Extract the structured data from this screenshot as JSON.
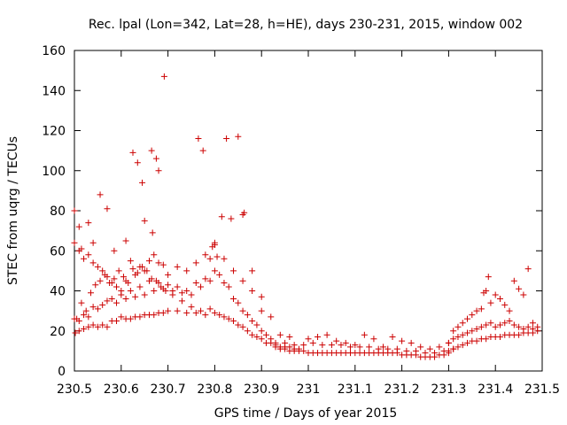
{
  "chart_data": {
    "type": "scatter",
    "title": "Rec. lpal (Lon=342, Lat=28, h=HE), days 230-231, 2015, window 002",
    "xlabel": "GPS time / Days of year 2015",
    "ylabel": "STEC from uqrg / TECUs",
    "xlim": [
      230.5,
      231.5
    ],
    "ylim": [
      0,
      160
    ],
    "xticks": [
      "230.5",
      "230.6",
      "230.7",
      "230.8",
      "230.9",
      "231",
      "231.1",
      "231.2",
      "231.3",
      "231.4",
      "231.5"
    ],
    "yticks": [
      "0",
      "20",
      "40",
      "60",
      "80",
      "100",
      "120",
      "140",
      "160"
    ],
    "grid": false,
    "legend": "none",
    "marker": "plus",
    "color": "#cc0000",
    "series": [
      {
        "x": [
          230.5,
          230.502,
          230.505,
          230.51,
          230.515,
          230.52,
          230.525,
          230.53,
          230.535,
          230.54,
          230.545,
          230.55,
          230.555,
          230.56,
          230.565,
          230.57,
          230.575,
          230.58,
          230.585,
          230.59,
          230.595,
          230.6,
          230.605,
          230.61,
          230.615,
          230.62,
          230.625,
          230.63,
          230.635,
          230.64,
          230.645,
          230.65,
          230.655,
          230.66,
          230.665,
          230.67,
          230.675,
          230.68,
          230.685,
          230.69,
          230.695,
          230.7,
          230.71,
          230.72,
          230.73,
          230.74,
          230.75,
          230.76,
          230.77,
          230.78,
          230.79,
          230.8,
          230.81,
          230.82,
          230.83,
          230.84,
          230.85,
          230.86,
          230.87,
          230.88,
          230.89,
          230.9,
          230.91,
          230.92,
          230.93,
          230.94,
          230.95,
          230.96,
          230.97,
          230.98
        ],
        "y": [
          64,
          19,
          26,
          20,
          34,
          21,
          30,
          22,
          39,
          23,
          43,
          22,
          45,
          23,
          48,
          22,
          44,
          25,
          46,
          25,
          50,
          27,
          47,
          26,
          44,
          26,
          51,
          27,
          49,
          27,
          52,
          28,
          50,
          28,
          46,
          28,
          45,
          29,
          42,
          29,
          40,
          30,
          38,
          30,
          35,
          29,
          32,
          29,
          30,
          28,
          31,
          29,
          28,
          27,
          26,
          25,
          23,
          22,
          20,
          18,
          17,
          16,
          14,
          14,
          13,
          12,
          12,
          12,
          11,
          11
        ]
      },
      {
        "x": [
          230.5,
          230.51,
          230.52,
          230.53,
          230.54,
          230.55,
          230.56,
          230.57,
          230.58,
          230.59,
          230.6,
          230.61,
          230.62,
          230.63,
          230.64,
          230.65,
          230.66,
          230.67,
          230.68,
          230.69,
          230.7,
          230.71,
          230.72,
          230.73,
          230.74,
          230.75,
          230.76,
          230.77,
          230.78,
          230.79,
          230.8,
          230.81,
          230.82,
          230.83,
          230.84,
          230.85,
          230.86,
          230.87,
          230.88,
          230.89,
          230.9,
          230.91,
          230.92,
          230.93
        ],
        "y": [
          26,
          25,
          28,
          27,
          32,
          31,
          33,
          35,
          36,
          34,
          38,
          36,
          40,
          37,
          42,
          38,
          45,
          40,
          44,
          41,
          43,
          40,
          42,
          39,
          40,
          38,
          44,
          42,
          46,
          45,
          50,
          48,
          44,
          42,
          36,
          34,
          30,
          28,
          25,
          23,
          20,
          18,
          16,
          14
        ]
      },
      {
        "x": [
          230.51,
          230.52,
          230.53,
          230.54,
          230.55,
          230.56,
          230.57,
          230.58,
          230.59,
          230.6,
          230.61,
          230.62,
          230.63,
          230.64,
          230.65,
          230.66,
          230.67,
          230.68,
          230.69,
          230.7,
          230.72,
          230.74,
          230.76,
          230.78,
          230.8,
          230.82,
          230.84,
          230.86,
          230.88,
          230.9
        ],
        "y": [
          60,
          56,
          58,
          54,
          52,
          50,
          47,
          44,
          42,
          40,
          45,
          55,
          48,
          52,
          50,
          55,
          58,
          54,
          53,
          48,
          52,
          50,
          54,
          58,
          63,
          56,
          50,
          45,
          40,
          30
        ]
      },
      {
        "x": [
          230.5,
          230.51,
          230.515,
          230.53,
          230.54,
          230.555,
          230.57,
          230.585,
          230.61,
          230.625,
          230.635,
          230.645,
          230.65,
          230.665,
          230.667,
          230.675,
          230.68,
          230.692,
          230.765,
          230.775,
          230.79,
          230.795,
          230.8,
          230.805,
          230.815,
          230.825,
          230.835,
          230.85,
          230.86,
          230.863,
          230.88,
          230.9
        ],
        "y": [
          80,
          72,
          61,
          74,
          64,
          88,
          81,
          60,
          65,
          109,
          104,
          94,
          75,
          110,
          69,
          106,
          100,
          147,
          116,
          110,
          56,
          62,
          64,
          57,
          77,
          116,
          76,
          117,
          78,
          79,
          50,
          37
        ]
      },
      {
        "x": [
          230.93,
          230.94,
          230.95,
          230.96,
          230.97,
          230.98,
          230.99,
          231.0,
          231.01,
          231.02,
          231.03,
          231.04,
          231.05,
          231.06,
          231.07,
          231.08,
          231.09,
          231.1,
          231.11,
          231.12,
          231.13,
          231.14,
          231.15,
          231.16,
          231.17,
          231.18,
          231.19,
          231.2,
          231.21,
          231.22,
          231.23,
          231.24,
          231.25,
          231.26,
          231.27,
          231.28,
          231.29,
          231.3
        ],
        "y": [
          12,
          11,
          11,
          10,
          10,
          10,
          10,
          9,
          9,
          9,
          9,
          9,
          9,
          9,
          9,
          9,
          9,
          9,
          9,
          9,
          9,
          9,
          9,
          9,
          9,
          9,
          9,
          8,
          8,
          8,
          8,
          7,
          7,
          7,
          7,
          8,
          8,
          9
        ]
      },
      {
        "x": [
          230.95,
          230.97,
          230.99,
          231.01,
          231.03,
          231.05,
          231.07,
          231.09,
          231.11,
          231.13,
          231.15,
          231.17,
          231.19,
          231.21,
          231.23,
          231.25,
          231.27,
          231.29,
          231.31
        ],
        "y": [
          14,
          13,
          13,
          14,
          13,
          13,
          13,
          12,
          12,
          12,
          11,
          11,
          11,
          10,
          10,
          9,
          9,
          10,
          11
        ]
      },
      {
        "x": [
          230.92,
          230.94,
          230.96,
          231.0,
          231.02,
          231.04,
          231.06,
          231.08,
          231.1,
          231.12,
          231.14,
          231.16,
          231.18,
          231.2,
          231.22,
          231.24,
          231.26,
          231.28,
          231.3
        ],
        "y": [
          27,
          18,
          17,
          16,
          17,
          18,
          15,
          14,
          13,
          18,
          16,
          12,
          17,
          15,
          14,
          12,
          11,
          12,
          14
        ]
      },
      {
        "x": [
          231.3,
          231.31,
          231.32,
          231.33,
          231.34,
          231.35,
          231.36,
          231.37,
          231.38,
          231.39,
          231.4,
          231.41,
          231.42,
          231.43,
          231.44,
          231.45,
          231.46,
          231.47,
          231.48,
          231.49
        ],
        "y": [
          10,
          11,
          12,
          13,
          14,
          15,
          15,
          16,
          16,
          17,
          17,
          17,
          18,
          18,
          18,
          18,
          19,
          19,
          19,
          20
        ]
      },
      {
        "x": [
          231.3,
          231.31,
          231.32,
          231.33,
          231.34,
          231.35,
          231.36,
          231.37,
          231.38,
          231.39,
          231.4,
          231.41,
          231.42,
          231.43,
          231.44,
          231.45,
          231.46,
          231.47,
          231.48,
          231.49
        ],
        "y": [
          14,
          16,
          17,
          18,
          19,
          20,
          21,
          22,
          23,
          24,
          22,
          23,
          24,
          25,
          23,
          22,
          21,
          22,
          21,
          22
        ]
      },
      {
        "x": [
          231.31,
          231.32,
          231.33,
          231.34,
          231.35,
          231.36,
          231.37,
          231.375,
          231.38,
          231.385,
          231.39,
          231.4,
          231.41,
          231.42,
          231.43,
          231.44,
          231.45,
          231.46,
          231.47,
          231.48
        ],
        "y": [
          20,
          22,
          24,
          26,
          28,
          30,
          31,
          39,
          40,
          47,
          34,
          38,
          36,
          33,
          30,
          45,
          41,
          38,
          51,
          24
        ]
      }
    ]
  }
}
